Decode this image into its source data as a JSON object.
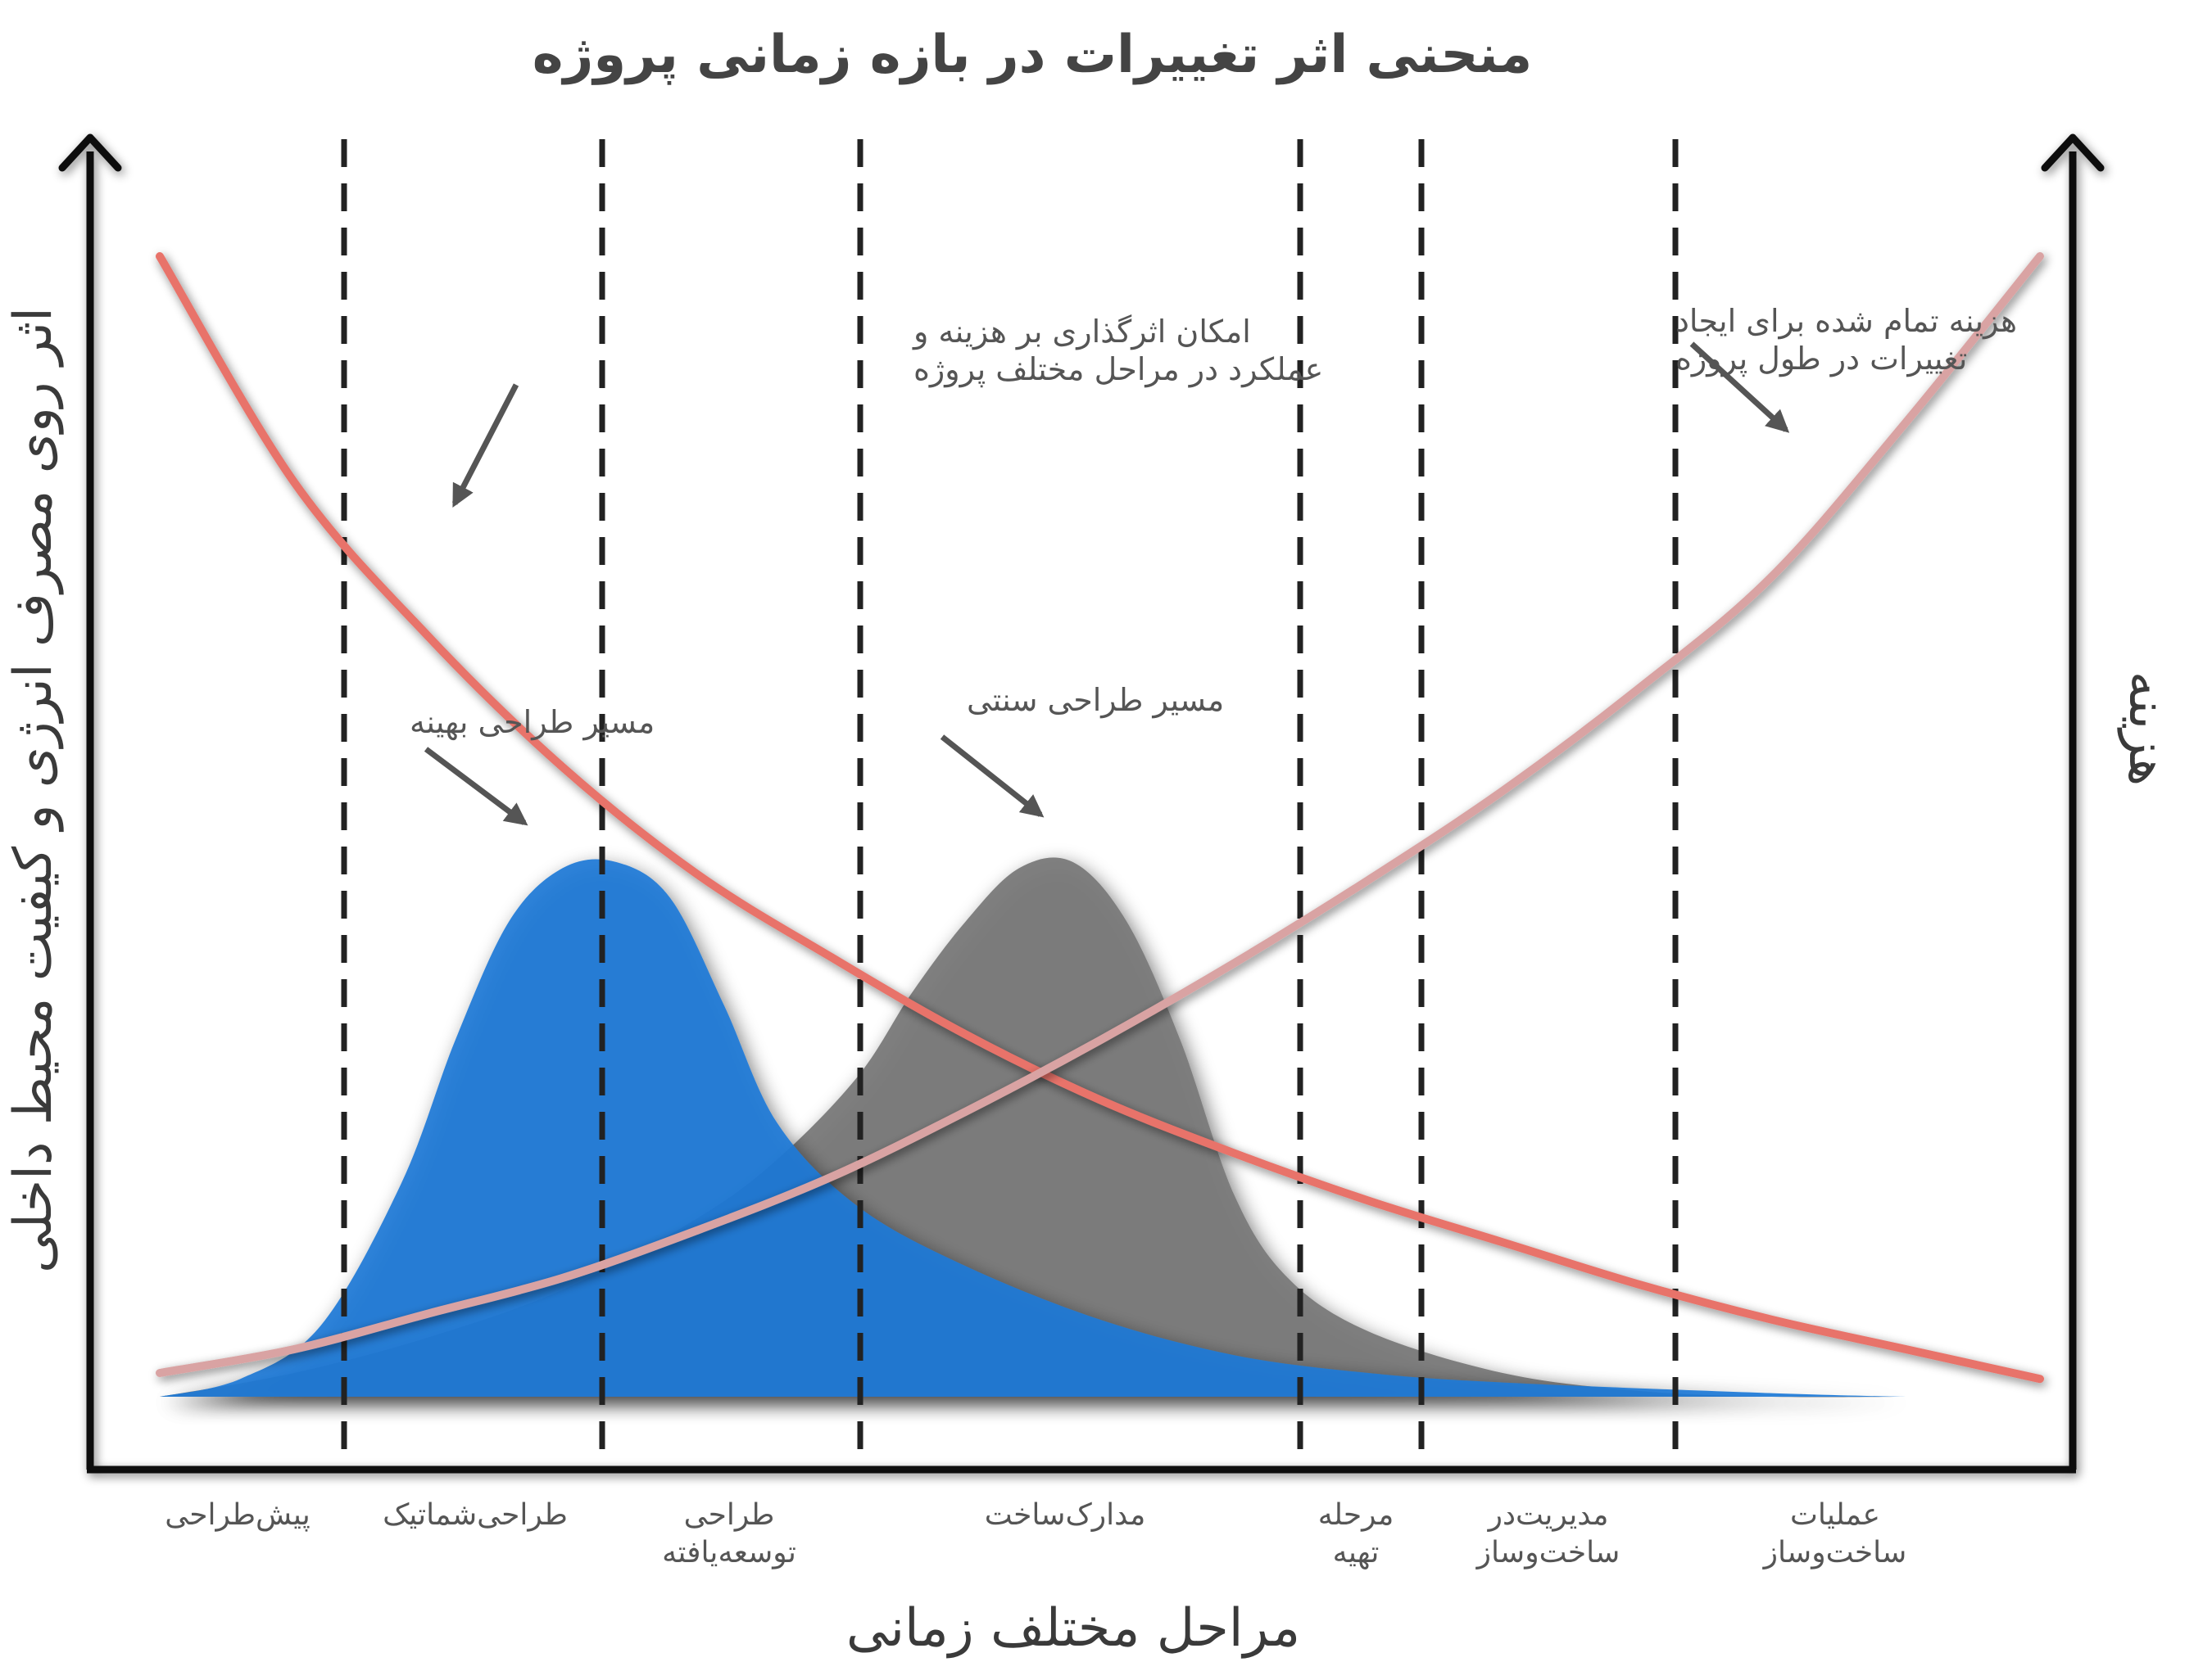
{
  "chart_data": {
    "type": "area",
    "title": "منحنی اثر تغییرات در بازه زمانی پروژه",
    "xlabel": "مراحل مختلف زمانی",
    "ylabel_left": "اثر روی مصرف انرژی و کیفیت محیط داخلی",
    "ylabel_right": "هزینه",
    "categories": [
      [
        "پیش‌طراحی"
      ],
      [
        "طراحی‌شماتیک"
      ],
      [
        "طراحی",
        "توسعه‌یافته"
      ],
      [
        "مدارک‌ساخت"
      ],
      [
        "مرحله",
        "تهیه"
      ],
      [
        "مدیریت‌در",
        "ساخت‌وساز"
      ],
      [
        "عملیات",
        "ساخت‌وساز"
      ]
    ],
    "grid": "dashed vertical stage boundaries",
    "series": [
      {
        "kind": "line",
        "color": "#e8736a",
        "label_lines": [
          "امکان اثرگذاری بر هزینه و",
          "عملکرد در مراحل مختلف پروژه"
        ],
        "x": [
          0.0,
          0.5,
          1.0,
          1.5,
          2.0,
          2.5,
          3.0,
          3.5,
          4.0,
          4.5,
          5.0,
          5.5,
          6.0,
          6.5,
          7.0
        ],
        "y": [
          96,
          77,
          64,
          53,
          44,
          37,
          30.5,
          25,
          20.5,
          16.5,
          13,
          9.5,
          6.5,
          4,
          1.5
        ]
      },
      {
        "kind": "line",
        "color": "#d9a3a3",
        "label_lines": [
          "هزینه تمام شده برای ایجاد",
          "تغییرات در طول پروژه"
        ],
        "x": [
          0.0,
          0.5,
          1.0,
          1.5,
          2.0,
          2.5,
          3.0,
          3.5,
          4.0,
          4.5,
          5.0,
          5.5,
          6.0,
          6.5,
          7.0
        ],
        "y": [
          2,
          4,
          7,
          10,
          14,
          18.5,
          24,
          30,
          36.5,
          43.5,
          51,
          59.5,
          69,
          82,
          96
        ]
      },
      {
        "kind": "area",
        "color": "#7a7a7a",
        "label_lines": [
          "مسیر طراحی سنتی"
        ],
        "x": [
          0.0,
          0.5,
          1.0,
          1.5,
          2.0,
          2.3,
          2.6,
          2.8,
          3.0,
          3.2,
          3.4,
          3.6,
          3.8,
          4.0,
          4.2,
          4.5,
          5.0,
          5.5,
          6.0,
          6.5
        ],
        "y": [
          0,
          2,
          5,
          9,
          15,
          20,
          27,
          34,
          40,
          44.5,
          45,
          40,
          30,
          17,
          10,
          5.5,
          2,
          0.5,
          0,
          0
        ]
      },
      {
        "kind": "area",
        "color": "#1f7ad6",
        "label_lines": [
          "مسیر طراحی بهینه"
        ],
        "x": [
          0.0,
          0.3,
          0.6,
          0.9,
          1.1,
          1.3,
          1.5,
          1.7,
          1.9,
          2.1,
          2.3,
          2.6,
          3.0,
          3.5,
          4.0,
          4.5,
          5.0,
          6.0,
          6.5
        ],
        "y": [
          0,
          1.5,
          6,
          18,
          30,
          40,
          44.5,
          45,
          42,
          33,
          23,
          16,
          11,
          6.5,
          3.5,
          2,
          1.2,
          0.3,
          0
        ]
      }
    ],
    "xlim": [
      0,
      7
    ],
    "ylim": [
      0,
      100
    ]
  }
}
